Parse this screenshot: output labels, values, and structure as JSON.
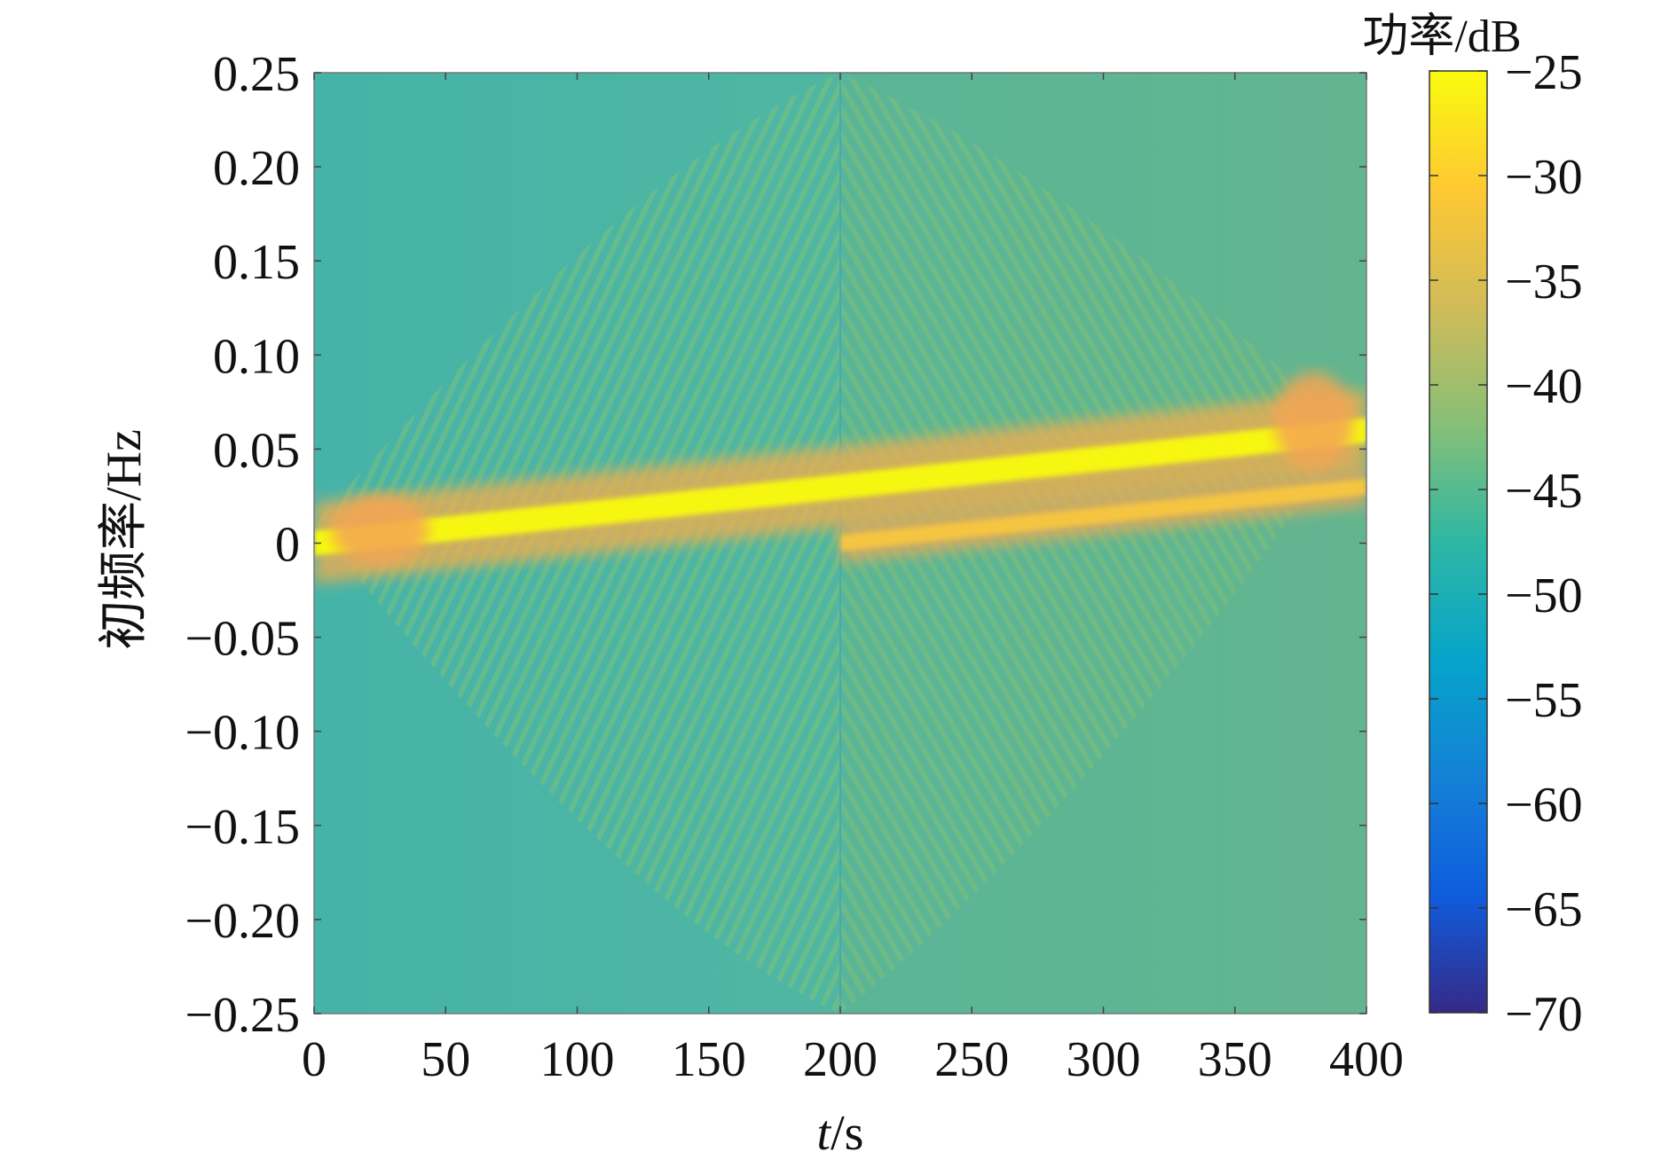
{
  "chart_data": {
    "type": "heatmap",
    "title": "",
    "xlabel": {
      "italic": "t",
      "rest": "/s"
    },
    "ylabel": "初频率/Hz",
    "xlim": [
      0,
      400
    ],
    "ylim": [
      -0.25,
      0.25
    ],
    "x_ticks": [
      0,
      50,
      100,
      150,
      200,
      250,
      300,
      350,
      400
    ],
    "x_tick_labels": [
      "0",
      "50",
      "100",
      "150",
      "200",
      "250",
      "300",
      "350",
      "400"
    ],
    "y_ticks": [
      0.25,
      0.2,
      0.15,
      0.1,
      0.05,
      0,
      -0.05,
      -0.1,
      -0.15,
      -0.2,
      -0.25
    ],
    "y_tick_labels": [
      "0.25",
      "0.20",
      "0.15",
      "0.10",
      "0.05",
      "0",
      "−0.05",
      "−0.10",
      "−0.15",
      "−0.20",
      "−0.25"
    ],
    "colorbar": {
      "title": "功率/dB",
      "range": [
        -70,
        -25
      ],
      "ticks": [
        -25,
        -30,
        -35,
        -40,
        -45,
        -50,
        -55,
        -60,
        -65,
        -70
      ],
      "tick_labels": [
        "−25",
        "−30",
        "−35",
        "−40",
        "−45",
        "−50",
        "−55",
        "−60",
        "−65",
        "−70"
      ],
      "colormap": "parula",
      "colors": [
        "#352a87",
        "#0f5cdd",
        "#1481d6",
        "#06a4ca",
        "#2eb7a4",
        "#87bf77",
        "#d1bb59",
        "#fec832",
        "#f9fb0e"
      ]
    },
    "features": {
      "background_dB_left": -47,
      "background_dB_right": -44,
      "ridges": [
        {
          "t_start": 0,
          "t_end": 400,
          "f_start": 0.0,
          "f_end": 0.06,
          "peak_dB": -28
        },
        {
          "t_start": 200,
          "t_end": 400,
          "f_start": 0.0,
          "f_end": 0.03,
          "peak_dB": -33
        }
      ]
    },
    "grid": false
  }
}
